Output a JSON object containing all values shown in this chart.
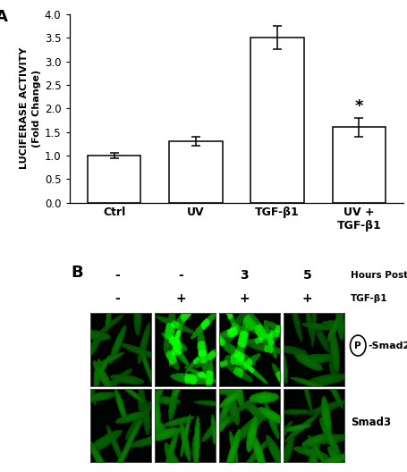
{
  "panel_A_label": "A",
  "panel_B_label": "B",
  "bar_categories": [
    "Ctrl",
    "UV",
    "TGF-β1",
    "UV +\nTGF-β1"
  ],
  "bar_values": [
    1.0,
    1.3,
    3.5,
    1.6
  ],
  "bar_errors": [
    0.05,
    0.1,
    0.25,
    0.2
  ],
  "bar_color": "#ffffff",
  "bar_edgecolor": "#000000",
  "ylim": [
    0,
    4.0
  ],
  "yticks": [
    0.0,
    0.5,
    1.0,
    1.5,
    2.0,
    2.5,
    3.0,
    3.5,
    4.0
  ],
  "ylabel_line1": "LUCIFERASE ACTIVITY",
  "ylabel_line2": "(Fold Change)",
  "star_label": "*",
  "hours_post_uv": [
    "-",
    "-",
    "3",
    "5"
  ],
  "tgf_b1_row": [
    "-",
    "+",
    "+",
    "+"
  ],
  "row1_label": " -Smad2",
  "row2_label": "Smad3",
  "hours_label": "Hours Post UV",
  "tgfb1_label": "TGF-β1",
  "background_color": "#ffffff"
}
